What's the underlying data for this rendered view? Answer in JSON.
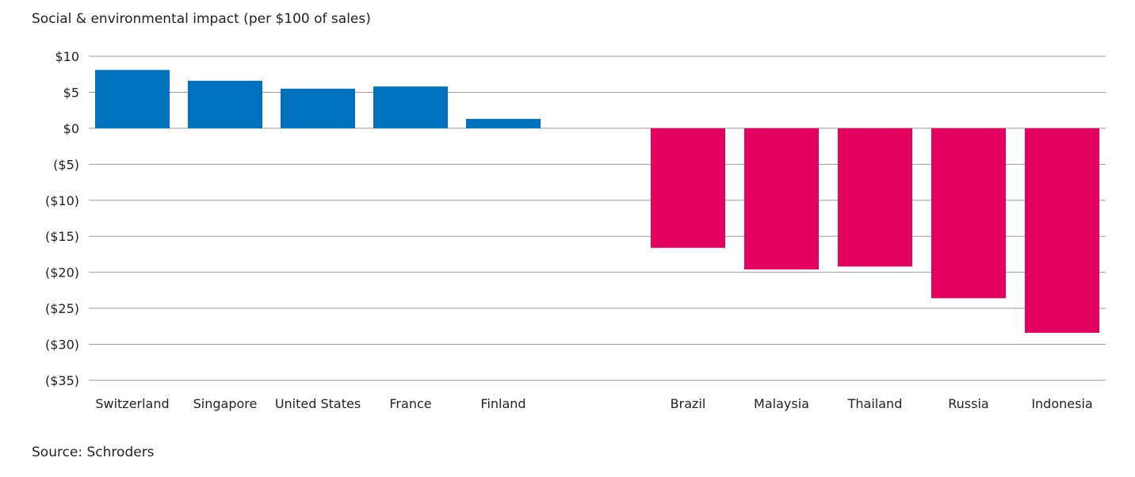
{
  "chart_data": {
    "type": "bar",
    "title": "Social & environmental impact (per $100 of sales)",
    "xlabel": "",
    "ylabel": "",
    "ylim": [
      -35,
      10
    ],
    "ytick_values": [
      10,
      5,
      0,
      -5,
      -10,
      -15,
      -20,
      -25,
      -30,
      -35
    ],
    "ytick_labels": [
      "$10",
      "$5",
      "$0",
      "($5)",
      "($10)",
      "($15)",
      "($20)",
      "($25)",
      "($30)",
      "($35)"
    ],
    "grid": true,
    "categories": [
      "Switzerland",
      "Singapore",
      "United States",
      "France",
      "Finland",
      "Brazil",
      "Malaysia",
      "Thailand",
      "Russia",
      "Indonesia"
    ],
    "values": [
      8.1,
      6.6,
      5.5,
      5.8,
      1.3,
      -16.6,
      -19.6,
      -19.2,
      -23.6,
      -28.4
    ],
    "colors": {
      "positive": "#0071bc",
      "negative": "#e3005f"
    }
  },
  "source": "Source: Schroders"
}
